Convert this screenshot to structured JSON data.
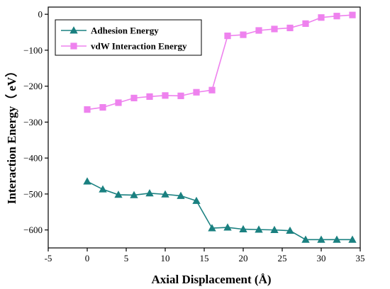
{
  "chart_data": {
    "type": "line",
    "title": "",
    "xlabel": "Axial Displacement (Å)",
    "ylabel": "Interaction Energy（ eV）",
    "xlim": [
      -5,
      35
    ],
    "ylim": [
      -650,
      20
    ],
    "xticks": [
      -5,
      0,
      5,
      10,
      15,
      20,
      25,
      30,
      35
    ],
    "yticks": [
      -600,
      -500,
      -400,
      -300,
      -200,
      -100,
      0
    ],
    "grid": false,
    "legend_position": "top-left",
    "x": [
      0,
      2,
      4,
      6,
      8,
      10,
      12,
      14,
      16,
      18,
      20,
      22,
      24,
      26,
      28,
      30,
      32,
      34
    ],
    "series": [
      {
        "name": "Adhesion Energy",
        "color": "#1a8080",
        "marker": "triangle",
        "values": [
          -465,
          -487,
          -502,
          -503,
          -498,
          -501,
          -505,
          -519,
          -595,
          -593,
          -598,
          -599,
          -600,
          -602,
          -627,
          -627,
          -627,
          -627
        ]
      },
      {
        "name": "vdW Interaction Energy",
        "color": "#ee82ee",
        "marker": "square",
        "values": [
          -265,
          -259,
          -246,
          -233,
          -229,
          -226,
          -227,
          -217,
          -211,
          -60,
          -57,
          -45,
          -41,
          -38,
          -26,
          -9,
          -5,
          -2
        ]
      }
    ]
  }
}
